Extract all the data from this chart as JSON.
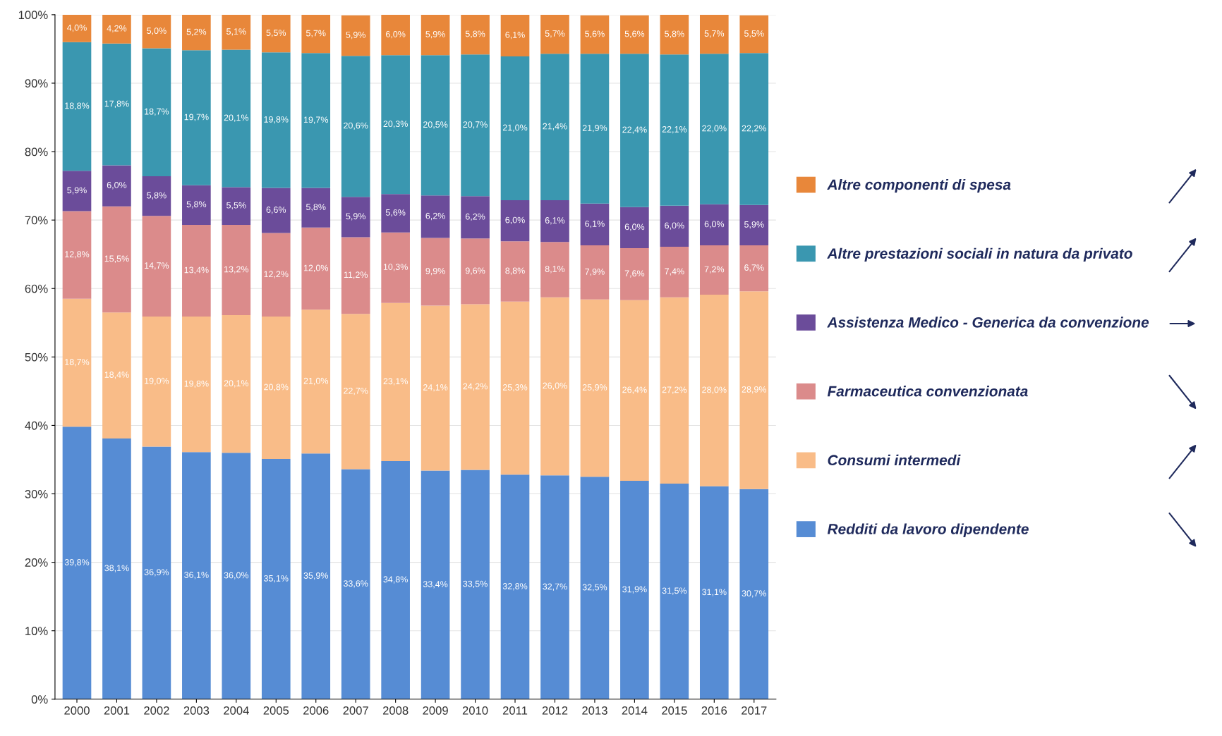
{
  "chart_data": {
    "type": "bar",
    "stacked": true,
    "categories": [
      "2000",
      "2001",
      "2002",
      "2003",
      "2004",
      "2005",
      "2006",
      "2007",
      "2008",
      "2009",
      "2010",
      "2011",
      "2012",
      "2013",
      "2014",
      "2015",
      "2016",
      "2017"
    ],
    "series": [
      {
        "name": "Redditi da lavoro dipendente",
        "color": "#568cd4",
        "values": [
          39.8,
          38.1,
          36.9,
          36.1,
          36.0,
          35.1,
          35.9,
          33.6,
          34.8,
          33.4,
          33.5,
          32.8,
          32.7,
          32.5,
          31.9,
          31.5,
          31.1,
          30.7
        ],
        "value_labels": [
          "39,8%",
          "38,1%",
          "36,9%",
          "36,1%",
          "36,0%",
          "35,1%",
          "35,9%",
          "33,6%",
          "34,8%",
          "33,4%",
          "33,5%",
          "32,8%",
          "32,7%",
          "32,5%",
          "31,9%",
          "31,5%",
          "31,1%",
          "30,7%"
        ]
      },
      {
        "name": "Consumi intermedi",
        "color": "#f9bc88",
        "values": [
          18.7,
          18.4,
          19.0,
          19.8,
          20.1,
          20.8,
          21.0,
          22.7,
          23.1,
          24.1,
          24.2,
          25.3,
          26.0,
          25.9,
          26.4,
          27.2,
          28.0,
          28.9
        ],
        "value_labels": [
          "18,7%",
          "18,4%",
          "19,0%",
          "19,8%",
          "20,1%",
          "20,8%",
          "21,0%",
          "22,7%",
          "23,1%",
          "24,1%",
          "24,2%",
          "25,3%",
          "26,0%",
          "25,9%",
          "26,4%",
          "27,2%",
          "28,0%",
          "28,9%"
        ]
      },
      {
        "name": "Farmaceutica convenzionata",
        "color": "#db8b8b",
        "values": [
          12.8,
          15.5,
          14.7,
          13.4,
          13.2,
          12.2,
          12.0,
          11.2,
          10.3,
          9.9,
          9.6,
          8.8,
          8.1,
          7.9,
          7.6,
          7.4,
          7.2,
          6.7
        ],
        "value_labels": [
          "12,8%",
          "15,5%",
          "14,7%",
          "13,4%",
          "13,2%",
          "12,2%",
          "12,0%",
          "11,2%",
          "10,3%",
          "9,9%",
          "9,6%",
          "8,8%",
          "8,1%",
          "7,9%",
          "7,6%",
          "7,4%",
          "7,2%",
          "6,7%"
        ]
      },
      {
        "name": "Assistenza Medico - Generica da convenzione",
        "color": "#6b4c9a",
        "values": [
          5.9,
          6.0,
          5.8,
          5.8,
          5.5,
          6.6,
          5.8,
          5.9,
          5.6,
          6.2,
          6.2,
          6.0,
          6.1,
          6.1,
          6.0,
          6.0,
          6.0,
          5.9
        ],
        "value_labels": [
          "5,9%",
          "6,0%",
          "5,8%",
          "5,8%",
          "5,5%",
          "6,6%",
          "5,8%",
          "5,9%",
          "5,6%",
          "6,2%",
          "6,2%",
          "6,0%",
          "6,1%",
          "6,1%",
          "6,0%",
          "6,0%",
          "6,0%",
          "5,9%"
        ]
      },
      {
        "name": "Altre prestazioni sociali in natura da privato",
        "color": "#3a97b0",
        "values": [
          18.8,
          17.8,
          18.7,
          19.7,
          20.1,
          19.8,
          19.7,
          20.6,
          20.3,
          20.5,
          20.7,
          21.0,
          21.4,
          21.9,
          22.4,
          22.1,
          22.0,
          22.2
        ],
        "value_labels": [
          "18,8%",
          "17,8%",
          "18,7%",
          "19,7%",
          "20,1%",
          "19,8%",
          "19,7%",
          "20,6%",
          "20,3%",
          "20,5%",
          "20,7%",
          "21,0%",
          "21,4%",
          "21,9%",
          "22,4%",
          "22,1%",
          "22,0%",
          "22,2%"
        ]
      },
      {
        "name": "Altre componenti di spesa",
        "color": "#e8873a",
        "values": [
          4.0,
          4.2,
          5.0,
          5.2,
          5.1,
          5.5,
          5.7,
          5.9,
          6.0,
          5.9,
          5.8,
          6.1,
          5.7,
          5.6,
          5.6,
          5.8,
          5.7,
          5.5
        ],
        "value_labels": [
          "4,0%",
          "4,2%",
          "5,0%",
          "5,2%",
          "5,1%",
          "5,5%",
          "5,7%",
          "5,9%",
          "6,0%",
          "5,9%",
          "5,8%",
          "6,1%",
          "5,7%",
          "5,6%",
          "5,6%",
          "5,8%",
          "5,7%",
          "5,5%"
        ]
      }
    ],
    "ylim": [
      0,
      100
    ],
    "yticks": [
      {
        "value": 0,
        "label": "0%"
      },
      {
        "value": 10,
        "label": "10%"
      },
      {
        "value": 20,
        "label": "20%"
      },
      {
        "value": 30,
        "label": "30%"
      },
      {
        "value": 40,
        "label": "40%"
      },
      {
        "value": 50,
        "label": "50%"
      },
      {
        "value": 60,
        "label": "60%"
      },
      {
        "value": 70,
        "label": "70%"
      },
      {
        "value": 80,
        "label": "80%"
      },
      {
        "value": 90,
        "label": "90%"
      },
      {
        "value": 100,
        "label": "100%"
      }
    ],
    "grid": "y",
    "legend": "right"
  }
}
